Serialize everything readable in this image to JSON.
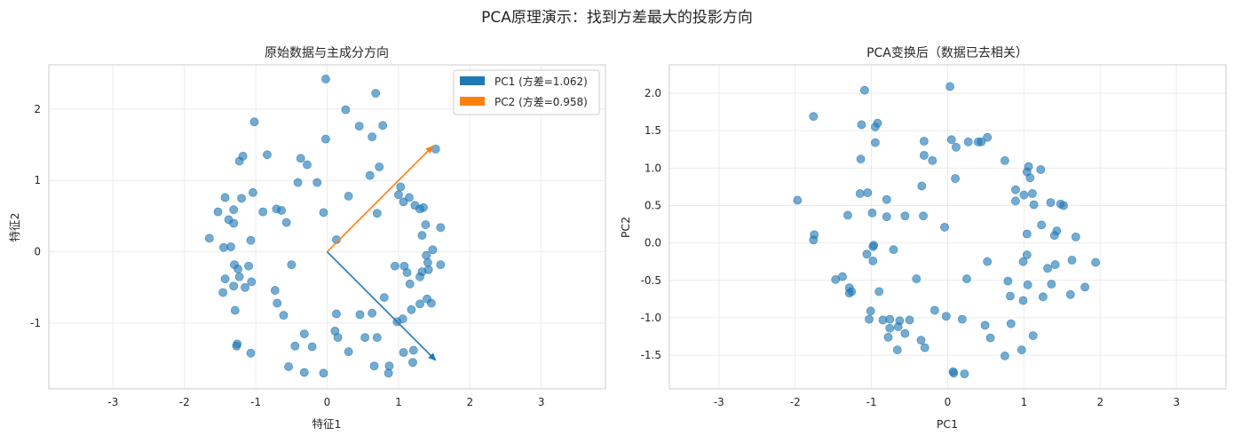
{
  "suptitle": "PCA原理演示：找到方差最大的投影方向",
  "colors": {
    "points": "#1f77b4",
    "pc1": "#1f77b4",
    "pc2": "#ff7f0e",
    "grid": "#ebebeb",
    "spine": "#cccccc"
  },
  "chart_data": [
    {
      "type": "scatter",
      "title": "原始数据与主成分方向",
      "xlabel": "特征1",
      "ylabel": "特征2",
      "xlim": [
        -3.9,
        3.9
      ],
      "ylim": [
        -1.92,
        2.62
      ],
      "xticks": [
        -3,
        -2,
        -1,
        0,
        1,
        2,
        3
      ],
      "xtick_labels": [
        "-3",
        "-2",
        "-1",
        "0",
        "1",
        "2",
        "3"
      ],
      "yticks": [
        -1,
        0,
        1,
        2
      ],
      "ytick_labels": [
        "-1",
        "0",
        "1",
        "2"
      ],
      "grid": true,
      "legend_position": "top-right",
      "legend": [
        {
          "label": "PC1 (方差=1.062)",
          "color": "#1f77b4"
        },
        {
          "label": "PC2 (方差=0.958)",
          "color": "#ff7f0e"
        }
      ],
      "arrows": [
        {
          "name": "PC1",
          "from": [
            0,
            0
          ],
          "to": [
            1.52,
            -1.52
          ],
          "color": "#1f77b4"
        },
        {
          "name": "PC2",
          "from": [
            0,
            0
          ],
          "to": [
            1.48,
            1.48
          ],
          "color": "#ff7f0e"
        }
      ],
      "points": [
        [
          -0.02,
          2.42
        ],
        [
          0.68,
          2.22
        ],
        [
          0.26,
          1.99
        ],
        [
          -1.02,
          1.82
        ],
        [
          0.78,
          1.77
        ],
        [
          0.45,
          1.76
        ],
        [
          0.63,
          1.61
        ],
        [
          -0.02,
          1.58
        ],
        [
          1.52,
          1.44
        ],
        [
          -0.84,
          1.36
        ],
        [
          -1.18,
          1.34
        ],
        [
          -0.37,
          1.31
        ],
        [
          -1.23,
          1.27
        ],
        [
          -0.28,
          1.22
        ],
        [
          0.73,
          1.19
        ],
        [
          0.6,
          1.07
        ],
        [
          -0.41,
          0.97
        ],
        [
          -0.14,
          0.97
        ],
        [
          1.03,
          0.91
        ],
        [
          -1.04,
          0.83
        ],
        [
          1.0,
          0.8
        ],
        [
          1.15,
          0.76
        ],
        [
          -1.2,
          0.75
        ],
        [
          0.3,
          0.78
        ],
        [
          -1.43,
          0.76
        ],
        [
          1.07,
          0.7
        ],
        [
          -0.71,
          0.6
        ],
        [
          1.23,
          0.65
        ],
        [
          1.35,
          0.62
        ],
        [
          1.3,
          0.6
        ],
        [
          -1.31,
          0.59
        ],
        [
          -0.9,
          0.56
        ],
        [
          -0.64,
          0.58
        ],
        [
          -1.53,
          0.56
        ],
        [
          0.7,
          0.54
        ],
        [
          -0.05,
          0.55
        ],
        [
          -1.38,
          0.45
        ],
        [
          -1.31,
          0.4
        ],
        [
          -0.57,
          0.41
        ],
        [
          1.38,
          0.38
        ],
        [
          1.59,
          0.34
        ],
        [
          1.33,
          0.23
        ],
        [
          -1.65,
          0.19
        ],
        [
          -1.07,
          0.16
        ],
        [
          0.13,
          0.17
        ],
        [
          -1.45,
          0.06
        ],
        [
          -1.35,
          0.07
        ],
        [
          1.48,
          0.03
        ],
        [
          1.39,
          -0.05
        ],
        [
          -0.5,
          -0.18
        ],
        [
          1.41,
          -0.15
        ],
        [
          0.95,
          -0.2
        ],
        [
          1.59,
          -0.18
        ],
        [
          -1.3,
          -0.18
        ],
        [
          -1.1,
          -0.2
        ],
        [
          1.08,
          -0.2
        ],
        [
          1.33,
          -0.28
        ],
        [
          -1.25,
          -0.24
        ],
        [
          -1.23,
          -0.35
        ],
        [
          -1.06,
          -0.42
        ],
        [
          -1.43,
          -0.38
        ],
        [
          1.42,
          -0.25
        ],
        [
          1.3,
          -0.35
        ],
        [
          1.12,
          -0.29
        ],
        [
          -1.31,
          -0.48
        ],
        [
          -1.15,
          -0.5
        ],
        [
          1.16,
          -0.45
        ],
        [
          -1.46,
          -0.57
        ],
        [
          -0.73,
          -0.54
        ],
        [
          0.8,
          -0.64
        ],
        [
          1.4,
          -0.66
        ],
        [
          1.3,
          -0.73
        ],
        [
          -0.7,
          -0.72
        ],
        [
          1.46,
          -0.72
        ],
        [
          -1.29,
          -0.82
        ],
        [
          -0.61,
          -0.89
        ],
        [
          0.13,
          -0.87
        ],
        [
          0.46,
          -0.88
        ],
        [
          0.63,
          -0.86
        ],
        [
          1.18,
          -0.81
        ],
        [
          1.06,
          -0.94
        ],
        [
          0.98,
          -0.98
        ],
        [
          -0.32,
          -1.15
        ],
        [
          0.11,
          -1.11
        ],
        [
          0.15,
          -1.2
        ],
        [
          0.53,
          -1.2
        ],
        [
          0.7,
          -1.2
        ],
        [
          -1.26,
          -1.29
        ],
        [
          -1.27,
          -1.32
        ],
        [
          -0.45,
          -1.32
        ],
        [
          -0.21,
          -1.33
        ],
        [
          0.3,
          -1.4
        ],
        [
          -1.07,
          -1.42
        ],
        [
          1.07,
          -1.41
        ],
        [
          1.21,
          -1.38
        ],
        [
          -0.54,
          -1.61
        ],
        [
          0.66,
          -1.6
        ],
        [
          0.87,
          -1.6
        ],
        [
          1.2,
          -1.55
        ],
        [
          -0.32,
          -1.69
        ],
        [
          -0.05,
          -1.7
        ],
        [
          0.86,
          -1.7
        ]
      ]
    },
    {
      "type": "scatter",
      "title": "PCA变换后（数据已去相关）",
      "xlabel": "PC1",
      "ylabel": "PC2",
      "xlim": [
        -3.65,
        3.65
      ],
      "ylim": [
        -1.95,
        2.38
      ],
      "xticks": [
        -3,
        -2,
        -1,
        0,
        1,
        2,
        3
      ],
      "xtick_labels": [
        "-3",
        "-2",
        "-1",
        "0",
        "1",
        "2",
        "3"
      ],
      "yticks": [
        -1.5,
        -1.0,
        -0.5,
        0.0,
        0.5,
        1.0,
        1.5,
        2.0
      ],
      "ytick_labels": [
        "-1.5",
        "-1.0",
        "-0.5",
        "0.0",
        "0.5",
        "1.0",
        "1.5",
        "2.0"
      ],
      "grid": true,
      "points": [
        [
          0.03,
          2.09
        ],
        [
          -1.09,
          2.04
        ],
        [
          -1.76,
          1.69
        ],
        [
          -0.92,
          1.6
        ],
        [
          -1.13,
          1.58
        ],
        [
          -0.95,
          1.55
        ],
        [
          0.52,
          1.41
        ],
        [
          0.44,
          1.35
        ],
        [
          -0.95,
          1.34
        ],
        [
          -0.31,
          1.36
        ],
        [
          0.05,
          1.38
        ],
        [
          0.11,
          1.28
        ],
        [
          0.27,
          1.35
        ],
        [
          0.4,
          1.35
        ],
        [
          1.06,
          1.02
        ],
        [
          1.04,
          0.95
        ],
        [
          1.22,
          0.98
        ],
        [
          0.75,
          1.1
        ],
        [
          1.08,
          0.87
        ],
        [
          -1.14,
          1.12
        ],
        [
          -0.31,
          1.17
        ],
        [
          -0.2,
          1.1
        ],
        [
          0.1,
          0.86
        ],
        [
          -0.34,
          0.76
        ],
        [
          0.89,
          0.71
        ],
        [
          1.11,
          0.66
        ],
        [
          1.0,
          0.64
        ],
        [
          -1.05,
          0.67
        ],
        [
          -1.15,
          0.66
        ],
        [
          -0.8,
          0.58
        ],
        [
          0.89,
          0.56
        ],
        [
          1.13,
          0.51
        ],
        [
          1.35,
          0.54
        ],
        [
          1.52,
          0.5
        ],
        [
          1.48,
          0.52
        ],
        [
          -1.97,
          0.57
        ],
        [
          -0.99,
          0.4
        ],
        [
          -1.31,
          0.37
        ],
        [
          -0.8,
          0.35
        ],
        [
          -0.56,
          0.36
        ],
        [
          -0.32,
          0.36
        ],
        [
          1.04,
          0.12
        ],
        [
          1.23,
          0.24
        ],
        [
          1.43,
          0.16
        ],
        [
          1.4,
          0.1
        ],
        [
          1.68,
          0.08
        ],
        [
          -0.04,
          0.21
        ],
        [
          -1.75,
          0.11
        ],
        [
          -1.76,
          0.04
        ],
        [
          -0.98,
          -0.05
        ],
        [
          -0.97,
          -0.03
        ],
        [
          -0.71,
          -0.09
        ],
        [
          -1.06,
          -0.15
        ],
        [
          -0.98,
          -0.24
        ],
        [
          0.52,
          -0.25
        ],
        [
          1.04,
          -0.16
        ],
        [
          1.31,
          -0.34
        ],
        [
          1.63,
          -0.23
        ],
        [
          1.94,
          -0.26
        ],
        [
          -1.38,
          -0.45
        ],
        [
          -1.47,
          -0.49
        ],
        [
          -1.29,
          -0.6
        ],
        [
          -0.9,
          -0.65
        ],
        [
          -1.26,
          -0.65
        ],
        [
          -1.29,
          -0.67
        ],
        [
          0.25,
          -0.48
        ],
        [
          0.79,
          -0.51
        ],
        [
          1.05,
          -0.56
        ],
        [
          1.36,
          -0.55
        ],
        [
          1.8,
          -0.59
        ],
        [
          0.82,
          -0.71
        ],
        [
          0.99,
          -0.77
        ],
        [
          1.25,
          -0.72
        ],
        [
          1.61,
          -0.69
        ],
        [
          -1.01,
          -0.91
        ],
        [
          -1.03,
          -1.02
        ],
        [
          -0.85,
          -1.03
        ],
        [
          -0.76,
          -1.02
        ],
        [
          -0.5,
          -1.03
        ],
        [
          -0.63,
          -1.04
        ],
        [
          -0.17,
          -0.9
        ],
        [
          -0.02,
          -0.98
        ],
        [
          0.19,
          -1.02
        ],
        [
          0.49,
          -1.1
        ],
        [
          0.83,
          -1.08
        ],
        [
          -0.76,
          -1.14
        ],
        [
          -0.65,
          -1.12
        ],
        [
          -0.56,
          -1.21
        ],
        [
          -0.78,
          -1.26
        ],
        [
          0.56,
          -1.27
        ],
        [
          1.12,
          -1.24
        ],
        [
          -0.3,
          -1.4
        ],
        [
          -0.66,
          -1.43
        ],
        [
          0.75,
          -1.51
        ],
        [
          0.97,
          -1.43
        ],
        [
          0.07,
          -1.72
        ],
        [
          0.08,
          -1.74
        ],
        [
          0.22,
          -1.75
        ],
        [
          -0.41,
          -0.48
        ],
        [
          -0.35,
          -1.3
        ],
        [
          1.41,
          -0.29
        ],
        [
          0.99,
          -0.25
        ]
      ]
    }
  ]
}
